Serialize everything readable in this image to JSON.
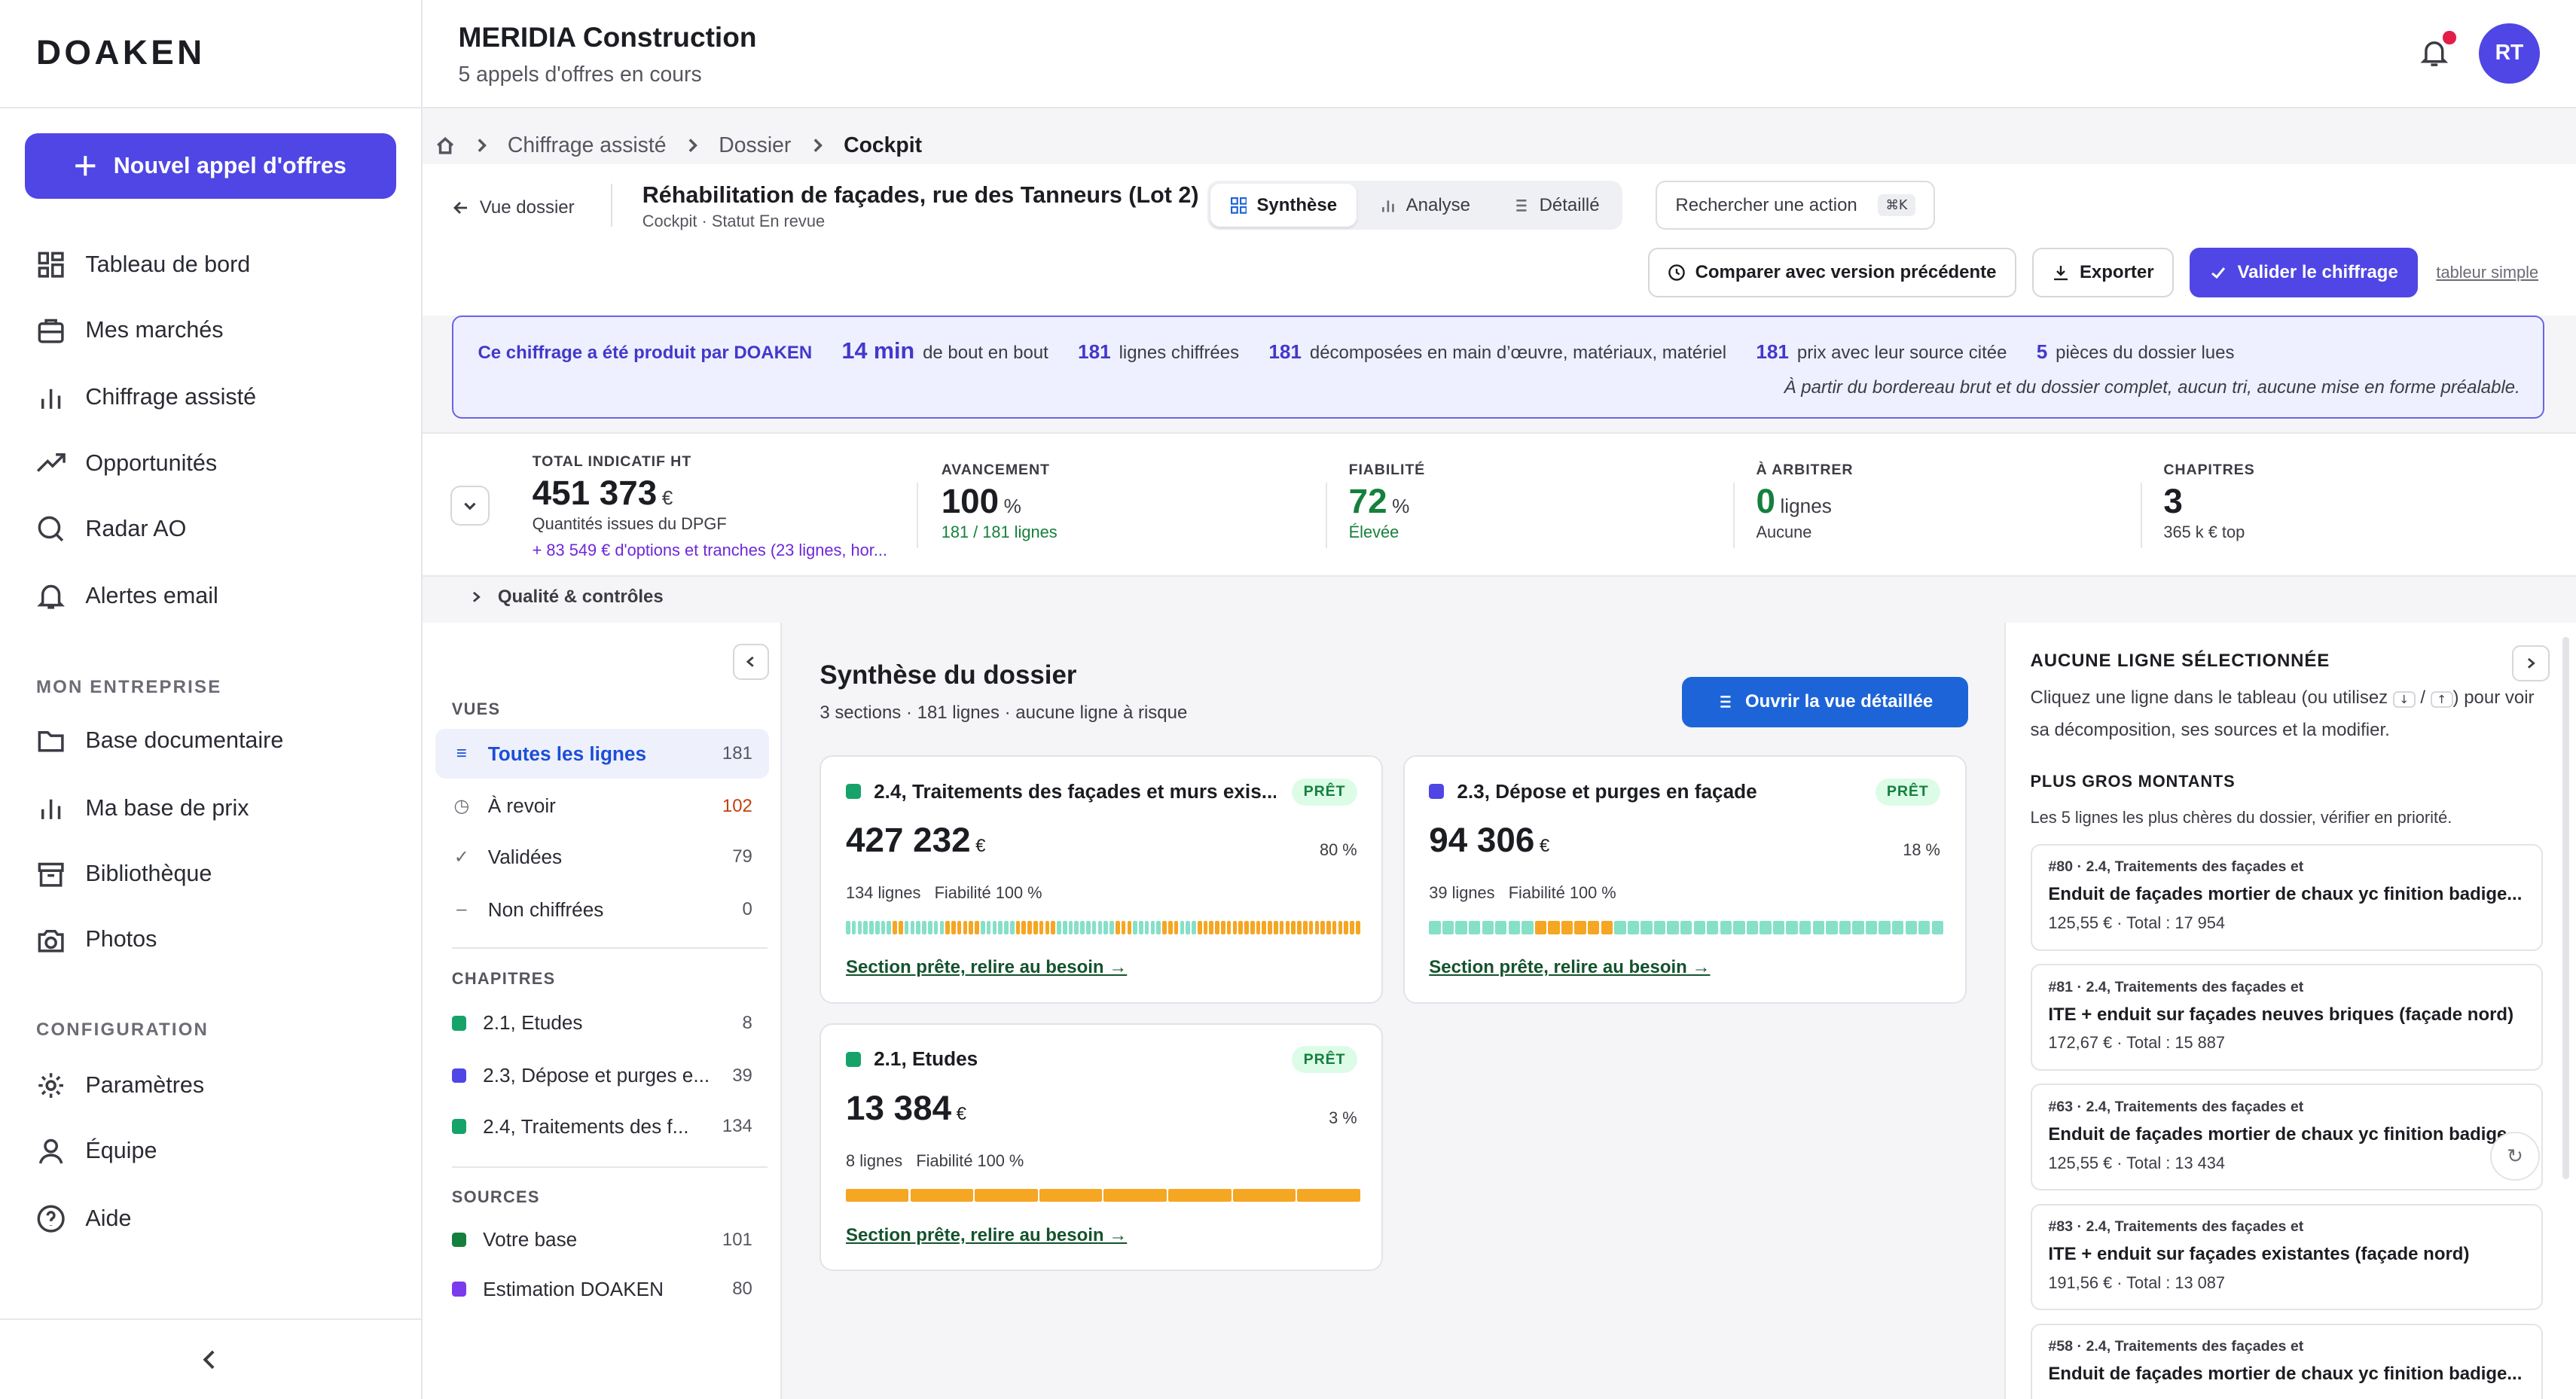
{
  "app": {
    "logo": "DOAKEN",
    "new_button": "Nouvel appel d'offres"
  },
  "nav": {
    "items": [
      "Tableau de bord",
      "Mes marchés",
      "Chiffrage assisté",
      "Opportunités",
      "Radar AO",
      "Alertes email"
    ],
    "section_company": "MON ENTREPRISE",
    "company_items": [
      "Base documentaire",
      "Ma base de prix",
      "Bibliothèque",
      "Photos"
    ],
    "section_config": "CONFIGURATION",
    "config_items": [
      "Paramètres",
      "Équipe",
      "Aide"
    ]
  },
  "topbar": {
    "org": "MERIDIA Construction",
    "org_sub": "5 appels d'offres en cours",
    "avatar": "RT"
  },
  "breadcrumb": [
    "Chiffrage assisté",
    "Dossier",
    "Cockpit"
  ],
  "header": {
    "back": "Vue dossier",
    "title": "Réhabilitation de façades, rue des Tanneurs (Lot 2)",
    "subtitle": "Cockpit · Statut En revue",
    "tabs": [
      "Synthèse",
      "Analyse",
      "Détaillé"
    ],
    "search": "Rechercher une action",
    "shortcut": "⌘K",
    "compare": "Comparer avec version précédente",
    "export": "Exporter",
    "validate": "Valider le chiffrage",
    "simple": "tableur simple"
  },
  "banner": {
    "lead": "Ce chiffrage a été produit par DOAKEN",
    "time": "14 min",
    "time_txt": "de bout en bout",
    "n1": "181",
    "t1": "lignes chiffrées",
    "n2": "181",
    "t2": "décomposées en main d’œuvre, matériaux, matériel",
    "n3": "181",
    "t3": "prix avec leur source citée",
    "n4": "5",
    "t4": "pièces du dossier lues",
    "note": "À partir du bordereau brut et du dossier complet, aucun tri, aucune mise en forme préalable."
  },
  "kpis": {
    "total": {
      "label": "TOTAL INDICATIF HT",
      "value": "451 373",
      "unit": "€",
      "sub": "Quantités issues du DPGF",
      "extra": "+ 83 549 € d'options et tranches (23 lignes, hor..."
    },
    "progress": {
      "label": "AVANCEMENT",
      "value": "100",
      "unit": "%",
      "sub": "181 / 181 lignes"
    },
    "reliability": {
      "label": "FIABILITÉ",
      "value": "72",
      "unit": "%",
      "sub": "Élevée"
    },
    "arbitrate": {
      "label": "À ARBITRER",
      "value": "0",
      "unit": "lignes",
      "sub": "Aucune"
    },
    "chapters": {
      "label": "CHAPITRES",
      "value": "3",
      "sub": "365 k € top"
    }
  },
  "quality": "Qualité & contrôles",
  "left": {
    "views_title": "VUES",
    "views": [
      {
        "label": "Toutes les lignes",
        "count": "181"
      },
      {
        "label": "À revoir",
        "count": "102"
      },
      {
        "label": "Validées",
        "count": "79"
      },
      {
        "label": "Non chiffrées",
        "count": "0"
      }
    ],
    "chapters_title": "CHAPITRES",
    "chapters": [
      {
        "label": "2.1, Etudes",
        "count": "8",
        "color": "#16a36a"
      },
      {
        "label": "2.3, Dépose et purges e...",
        "count": "39",
        "color": "#4f46e5"
      },
      {
        "label": "2.4, Traitements des f...",
        "count": "134",
        "color": "#16a36a"
      }
    ],
    "sources_title": "SOURCES",
    "sources": [
      {
        "label": "Votre base",
        "count": "101",
        "color": "#15803d"
      },
      {
        "label": "Estimation DOAKEN",
        "count": "80",
        "color": "#7c3aed"
      }
    ]
  },
  "main": {
    "title": "Synthèse du dossier",
    "subtitle": "3 sections · 181 lignes · aucune ligne à risque",
    "open_btn": "Ouvrir la vue détaillée",
    "cards": [
      {
        "title": "2.4, Traitements des façades et murs exis...",
        "badge": "PRÊT",
        "amount": "427 232",
        "unit": "€",
        "pct": "80 %",
        "lines": "134 lignes",
        "reliability": "Fiabilité 100 %",
        "link": "Section prête, relire au besoin →",
        "color": "#16a36a"
      },
      {
        "title": "2.3, Dépose et purges en façade",
        "badge": "PRÊT",
        "amount": "94 306",
        "unit": "€",
        "pct": "18 %",
        "lines": "39 lignes",
        "reliability": "Fiabilité 100 %",
        "link": "Section prête, relire au besoin →",
        "color": "#4f46e5"
      },
      {
        "title": "2.1, Etudes",
        "badge": "PRÊT",
        "amount": "13 384",
        "unit": "€",
        "pct": "3 %",
        "lines": "8 lignes",
        "reliability": "Fiabilité 100 %",
        "link": "Section prête, relire au besoin →",
        "color": "#16a36a"
      }
    ]
  },
  "right": {
    "title": "AUCUNE LIGNE SÉLECTIONNÉE",
    "desc_a": "Cliquez une ligne dans le tableau (ou utilisez",
    "desc_b": "pour voir sa décomposition, ses sources et la modifier.",
    "key1": "↓",
    "key2": "↑",
    "top_title": "PLUS GROS MONTANTS",
    "top_sub": "Les 5 lignes les plus chères du dossier, vérifier en priorité.",
    "lines": [
      {
        "ref": "#80 · 2.4, Traitements des façades et",
        "name": "Enduit de façades mortier de chaux yc finition badige...",
        "price": "125,55 € · Total : 17 954"
      },
      {
        "ref": "#81 · 2.4, Traitements des façades et",
        "name": "ITE + enduit sur façades neuves briques (façade nord)",
        "price": "172,67 € · Total : 15 887"
      },
      {
        "ref": "#63 · 2.4, Traitements des façades et",
        "name": "Enduit de façades mortier de chaux yc finition badige...",
        "price": "125,55 € · Total : 13 434"
      },
      {
        "ref": "#83 · 2.4, Traitements des façades et",
        "name": "ITE + enduit sur façades existantes (façade nord)",
        "price": "191,56 € · Total : 13 087"
      },
      {
        "ref": "#58 · 2.4, Traitements des façades et",
        "name": "Enduit de façades mortier de chaux yc finition badige...",
        "price": ""
      }
    ]
  },
  "colors": {
    "accent": "#4f46e5",
    "blue": "#1d64d8",
    "teal": "#86e0c8",
    "orange": "#f5a623",
    "green": "#16a36a"
  }
}
